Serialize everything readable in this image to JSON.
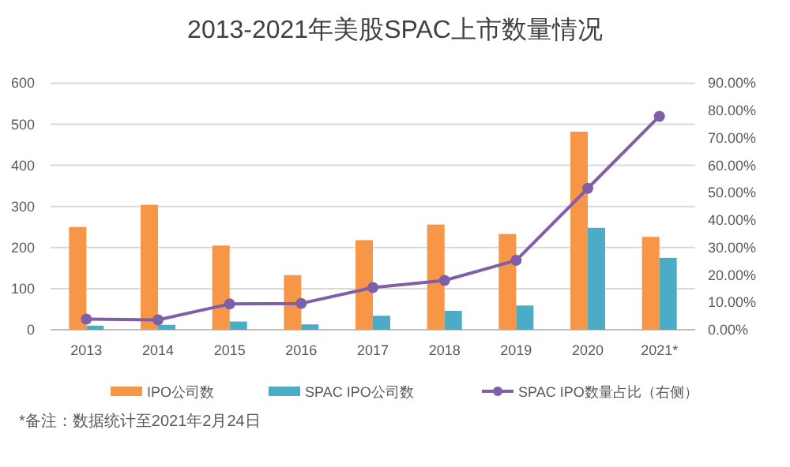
{
  "chart_data": {
    "type": "bar",
    "title": "2013-2021年美股SPAC上市数量情况",
    "categories": [
      "2013",
      "2014",
      "2015",
      "2016",
      "2017",
      "2018",
      "2019",
      "2020",
      "2021*"
    ],
    "series": [
      {
        "name": "IPO公司数",
        "color": "#f79646",
        "values": [
          250,
          304,
          205,
          133,
          218,
          256,
          233,
          482,
          226
        ]
      },
      {
        "name": "SPAC IPO公司数",
        "color": "#4bacc6",
        "values": [
          10,
          12,
          20,
          13,
          34,
          46,
          59,
          248,
          175
        ]
      },
      {
        "name": "SPAC IPO数量占比（右侧）",
        "type": "line",
        "axis": "y2",
        "marker": "circle",
        "color": "#7f5fa8",
        "values": [
          3.9,
          3.6,
          9.4,
          9.6,
          15.4,
          18.0,
          25.3,
          51.6,
          77.9
        ]
      }
    ],
    "ylim": [
      0,
      600
    ],
    "yticks": [
      0,
      100,
      200,
      300,
      400,
      500,
      600
    ],
    "y2lim": [
      0,
      90
    ],
    "y2ticks": [
      {
        "value": 0,
        "label": "0.00%"
      },
      {
        "value": 10,
        "label": "10.00%"
      },
      {
        "value": 20,
        "label": "20.00%"
      },
      {
        "value": 30,
        "label": "30.00%"
      },
      {
        "value": 40,
        "label": "40.00%"
      },
      {
        "value": 50,
        "label": "50.00%"
      },
      {
        "value": 60,
        "label": "60.00%"
      },
      {
        "value": 70,
        "label": "70.00%"
      },
      {
        "value": 80,
        "label": "80.00%"
      },
      {
        "value": 90,
        "label": "90.00%"
      }
    ],
    "grid": "y",
    "legend": "bottom",
    "annotations": [
      "*备注：数据统计至2021年2月24日"
    ]
  }
}
